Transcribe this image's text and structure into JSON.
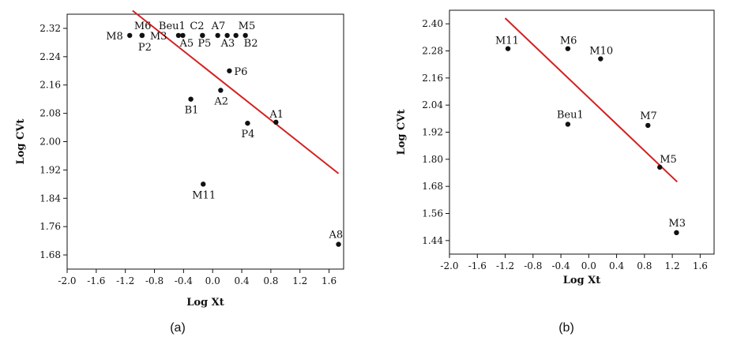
{
  "chart_data": [
    {
      "type": "scatter",
      "panel_label": "(a)",
      "xlabel": "Log Xt",
      "ylabel": "Log CVt",
      "xlim": [
        -2.0,
        1.8
      ],
      "ylim": [
        1.64,
        2.36
      ],
      "xticks": [
        -2.0,
        -1.6,
        -1.2,
        -0.8,
        -0.4,
        0.0,
        0.4,
        0.8,
        1.2,
        1.6
      ],
      "xtick_labels": [
        "-2.0",
        "-1.6",
        "-1.2",
        "-0.8",
        "-0.4",
        "0.0",
        "0.4",
        "0.8",
        "1.2",
        "1.6"
      ],
      "yticks": [
        1.68,
        1.76,
        1.84,
        1.92,
        2.0,
        2.08,
        2.16,
        2.24,
        2.32
      ],
      "ytick_labels": [
        "1.68",
        "1.76",
        "1.84",
        "1.92",
        "2.00",
        "2.08",
        "2.16",
        "2.24",
        "2.32"
      ],
      "points": [
        {
          "label": "M8",
          "x": -1.14,
          "y": 2.3
        },
        {
          "label": "M6",
          "x": -0.97,
          "y": 2.3
        },
        {
          "label": "P2",
          "x": -0.97,
          "y": 2.3
        },
        {
          "label": "M3",
          "x": -0.97,
          "y": 2.3
        },
        {
          "label": "Beu1",
          "x": -0.47,
          "y": 2.3
        },
        {
          "label": "A5",
          "x": -0.41,
          "y": 2.3
        },
        {
          "label": "C2",
          "x": -0.14,
          "y": 2.3
        },
        {
          "label": "P5",
          "x": -0.14,
          "y": 2.3
        },
        {
          "label": "A7",
          "x": 0.07,
          "y": 2.3
        },
        {
          "label": "A3",
          "x": 0.2,
          "y": 2.3
        },
        {
          "label": "M5",
          "x": 0.32,
          "y": 2.3
        },
        {
          "label": "B2",
          "x": 0.45,
          "y": 2.3
        },
        {
          "label": "P6",
          "x": 0.23,
          "y": 2.2
        },
        {
          "label": "A2",
          "x": 0.11,
          "y": 2.145
        },
        {
          "label": "B1",
          "x": -0.3,
          "y": 2.12
        },
        {
          "label": "A1",
          "x": 0.87,
          "y": 2.055
        },
        {
          "label": "P4",
          "x": 0.48,
          "y": 2.052
        },
        {
          "label": "M11",
          "x": -0.13,
          "y": 1.88
        },
        {
          "label": "A8",
          "x": 1.73,
          "y": 1.71
        }
      ],
      "fit_line": {
        "x": [
          -1.1,
          1.73
        ],
        "y": [
          2.37,
          1.91
        ],
        "color": "#d42020"
      }
    },
    {
      "type": "scatter",
      "panel_label": "(b)",
      "xlabel": "Log Xt",
      "ylabel": "Log CVt",
      "xlim": [
        -2.0,
        1.8
      ],
      "ylim": [
        1.38,
        2.46
      ],
      "xticks": [
        -2.0,
        -1.6,
        -1.2,
        -0.8,
        -0.4,
        0.0,
        0.4,
        0.8,
        1.2,
        1.6
      ],
      "xtick_labels": [
        "-2.0",
        "-1.6",
        "-1.2",
        "-0.8",
        "-0.4",
        "0.0",
        "0.4",
        "0.8",
        "1.2",
        "1.6"
      ],
      "yticks": [
        1.44,
        1.56,
        1.68,
        1.8,
        1.92,
        2.04,
        2.16,
        2.28,
        2.4
      ],
      "ytick_labels": [
        "1.44",
        "1.56",
        "1.68",
        "1.80",
        "1.92",
        "2.04",
        "2.16",
        "2.28",
        "2.40"
      ],
      "points": [
        {
          "label": "M11",
          "x": -1.16,
          "y": 2.29
        },
        {
          "label": "M6",
          "x": -0.3,
          "y": 2.29
        },
        {
          "label": "M10",
          "x": 0.17,
          "y": 2.245
        },
        {
          "label": "Beu1",
          "x": -0.3,
          "y": 1.955
        },
        {
          "label": "M7",
          "x": 0.85,
          "y": 1.95
        },
        {
          "label": "M5",
          "x": 1.02,
          "y": 1.765
        },
        {
          "label": "M3",
          "x": 1.26,
          "y": 1.475
        }
      ],
      "fit_line": {
        "x": [
          -1.2,
          1.27
        ],
        "y": [
          2.425,
          1.7
        ],
        "color": "#d42020"
      }
    }
  ]
}
